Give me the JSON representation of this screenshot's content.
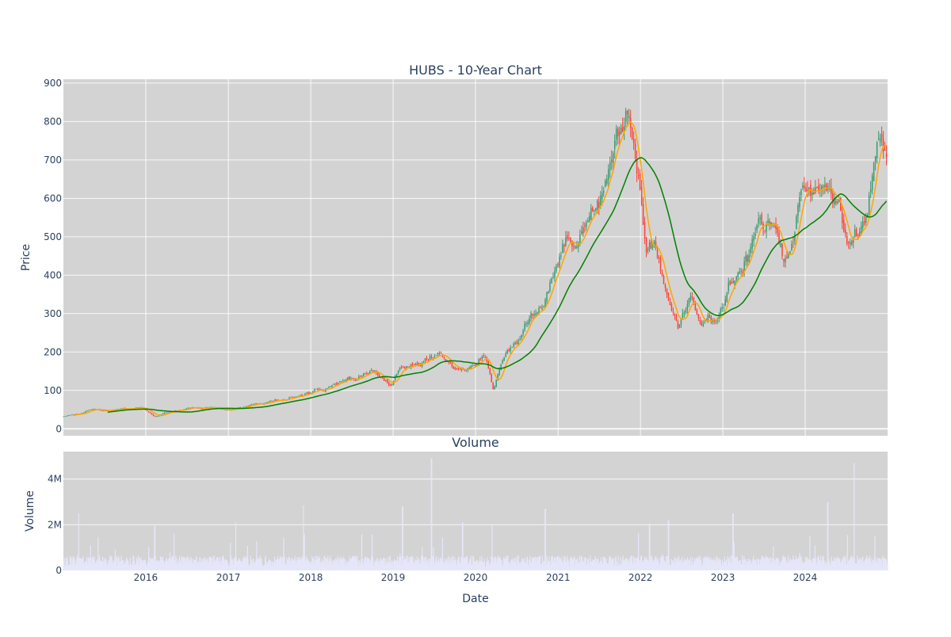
{
  "chart_data": [
    {
      "type": "candlestick",
      "title": "HUBS - 10-Year Chart",
      "xlabel": "",
      "ylabel": "Price",
      "ylim": [
        -18,
        910
      ],
      "yticks": [
        0,
        100,
        200,
        300,
        400,
        500,
        600,
        700,
        800,
        900
      ],
      "xlim": [
        "2015-01-01",
        "2024-12-31"
      ],
      "xticks": [
        "2016-01-01",
        "2017-01-01",
        "2018-01-01",
        "2019-01-01",
        "2020-01-01",
        "2021-01-01",
        "2022-01-01",
        "2023-01-01",
        "2024-01-01"
      ],
      "xtick_labels": [
        "2016",
        "2017",
        "2018",
        "2019",
        "2020",
        "2021",
        "2022",
        "2023",
        "2024"
      ],
      "grid": true,
      "background": "#d3d3d3",
      "colors": {
        "up": "#3d9970",
        "down": "#ff4136",
        "ma_short": "#ffa500",
        "ma_long": "#008000"
      },
      "close_anchors": [
        [
          "2015-01-01",
          33
        ],
        [
          "2015-03-15",
          40
        ],
        [
          "2015-05-01",
          50
        ],
        [
          "2015-07-01",
          48
        ],
        [
          "2015-10-01",
          52
        ],
        [
          "2015-12-15",
          56
        ],
        [
          "2016-02-10",
          33
        ],
        [
          "2016-04-01",
          43
        ],
        [
          "2016-07-01",
          52
        ],
        [
          "2016-10-01",
          56
        ],
        [
          "2017-01-01",
          48
        ],
        [
          "2017-04-01",
          62
        ],
        [
          "2017-07-01",
          70
        ],
        [
          "2017-10-01",
          80
        ],
        [
          "2018-01-01",
          93
        ],
        [
          "2018-04-01",
          112
        ],
        [
          "2018-07-01",
          130
        ],
        [
          "2018-10-01",
          150
        ],
        [
          "2018-12-24",
          115
        ],
        [
          "2019-02-01",
          160
        ],
        [
          "2019-05-01",
          172
        ],
        [
          "2019-08-01",
          190
        ],
        [
          "2019-10-01",
          150
        ],
        [
          "2019-12-01",
          158
        ],
        [
          "2020-02-15",
          190
        ],
        [
          "2020-03-20",
          100
        ],
        [
          "2020-05-01",
          185
        ],
        [
          "2020-07-01",
          225
        ],
        [
          "2020-09-01",
          290
        ],
        [
          "2020-11-01",
          325
        ],
        [
          "2020-12-01",
          390
        ],
        [
          "2021-02-10",
          500
        ],
        [
          "2021-03-20",
          470
        ],
        [
          "2021-05-01",
          520
        ],
        [
          "2021-07-01",
          590
        ],
        [
          "2021-09-01",
          690
        ],
        [
          "2021-11-05",
          820
        ],
        [
          "2021-12-20",
          680
        ],
        [
          "2022-01-25",
          450
        ],
        [
          "2022-03-01",
          490
        ],
        [
          "2022-04-15",
          380
        ],
        [
          "2022-06-15",
          270
        ],
        [
          "2022-08-15",
          350
        ],
        [
          "2022-10-01",
          265
        ],
        [
          "2022-12-15",
          290
        ],
        [
          "2023-02-01",
          380
        ],
        [
          "2023-04-01",
          410
        ],
        [
          "2023-06-01",
          525
        ],
        [
          "2023-08-01",
          540
        ],
        [
          "2023-10-15",
          430
        ],
        [
          "2023-12-01",
          570
        ],
        [
          "2024-02-15",
          640
        ],
        [
          "2024-04-01",
          650
        ],
        [
          "2024-05-15",
          590
        ],
        [
          "2024-06-01",
          600
        ],
        [
          "2024-07-05",
          470
        ],
        [
          "2024-08-15",
          500
        ],
        [
          "2024-10-01",
          540
        ],
        [
          "2024-11-15",
          740
        ],
        [
          "2024-12-31",
          700
        ]
      ],
      "series": [
        {
          "candles": "ohlc"
        },
        {
          "ma_window_days": 50,
          "color": "#ffa500"
        },
        {
          "ma_window_days": 200,
          "color": "#008000"
        }
      ]
    },
    {
      "type": "bar",
      "title": "Volume",
      "xlabel": "Date",
      "ylabel": "Volume",
      "ylim": [
        0,
        5200000
      ],
      "yticks": [
        0,
        2000000,
        4000000
      ],
      "ytick_labels": [
        "0",
        "2M",
        "4M"
      ],
      "xticks": [
        "2016-01-01",
        "2017-01-01",
        "2018-01-01",
        "2019-01-01",
        "2020-01-01",
        "2021-01-01",
        "2022-01-01",
        "2023-01-01",
        "2024-01-01"
      ],
      "xtick_labels": [
        "2016",
        "2017",
        "2018",
        "2019",
        "2020",
        "2021",
        "2022",
        "2023",
        "2024"
      ],
      "grid": true,
      "background": "#d3d3d3",
      "bar_color": "#e6e6fa",
      "volume_base": 450000,
      "volume_spikes": [
        [
          "2015-03-10",
          2500000
        ],
        [
          "2015-05-01",
          1100000
        ],
        [
          "2016-02-10",
          1950000
        ],
        [
          "2016-05-05",
          1600000
        ],
        [
          "2017-11-30",
          2850000
        ],
        [
          "2019-02-12",
          2800000
        ],
        [
          "2019-06-20",
          4900000
        ],
        [
          "2019-11-05",
          2100000
        ],
        [
          "2020-03-15",
          2000000
        ],
        [
          "2020-11-05",
          2700000
        ],
        [
          "2022-02-10",
          2050000
        ],
        [
          "2022-05-05",
          2200000
        ],
        [
          "2023-02-15",
          2500000
        ],
        [
          "2024-04-10",
          3000000
        ],
        [
          "2024-08-05",
          4700000
        ],
        [
          "2024-11-05",
          1500000
        ]
      ]
    }
  ]
}
